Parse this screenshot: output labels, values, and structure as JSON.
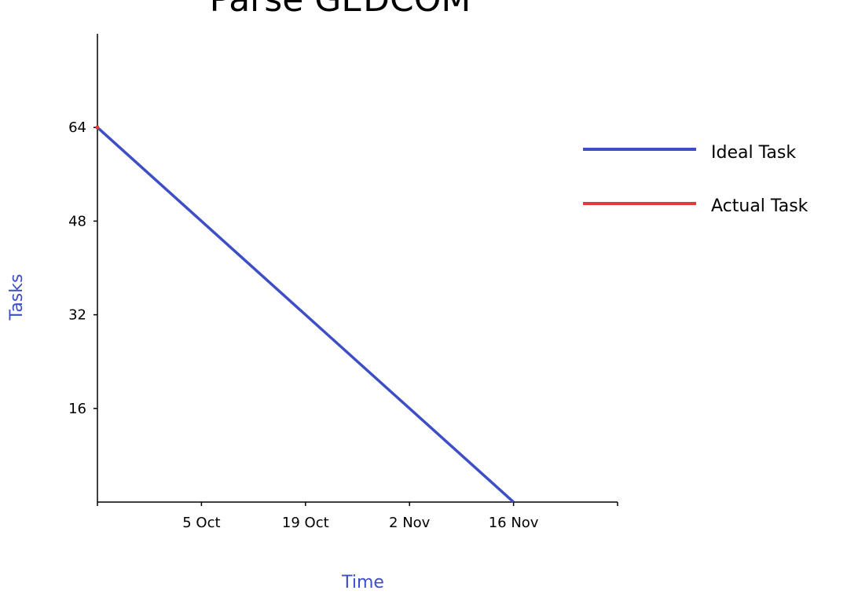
{
  "chart_data": {
    "type": "line",
    "title": "Parse GEDCOM",
    "xlabel": "Time",
    "ylabel": "Tasks",
    "x_ticks": [
      "5 Oct",
      "19 Oct",
      "2 Nov",
      "16 Nov"
    ],
    "y_ticks": [
      16,
      32,
      48,
      64
    ],
    "ylim": [
      0,
      80
    ],
    "xlim": [
      "2017-09-21",
      "2017-11-30"
    ],
    "grid": false,
    "legend_position": "right",
    "series": [
      {
        "name": "Ideal Task",
        "color": "#3e4ec4",
        "points": [
          {
            "x": "2017-09-21",
            "y": 64
          },
          {
            "x": "2017-11-16",
            "y": 0
          }
        ]
      },
      {
        "name": "Actual Task",
        "color": "#e03a3a",
        "points": [
          {
            "x": "2017-09-21",
            "y": 64
          }
        ]
      }
    ],
    "colors": {
      "axis": "#000000",
      "axis_label": "#3e4ec4"
    }
  }
}
